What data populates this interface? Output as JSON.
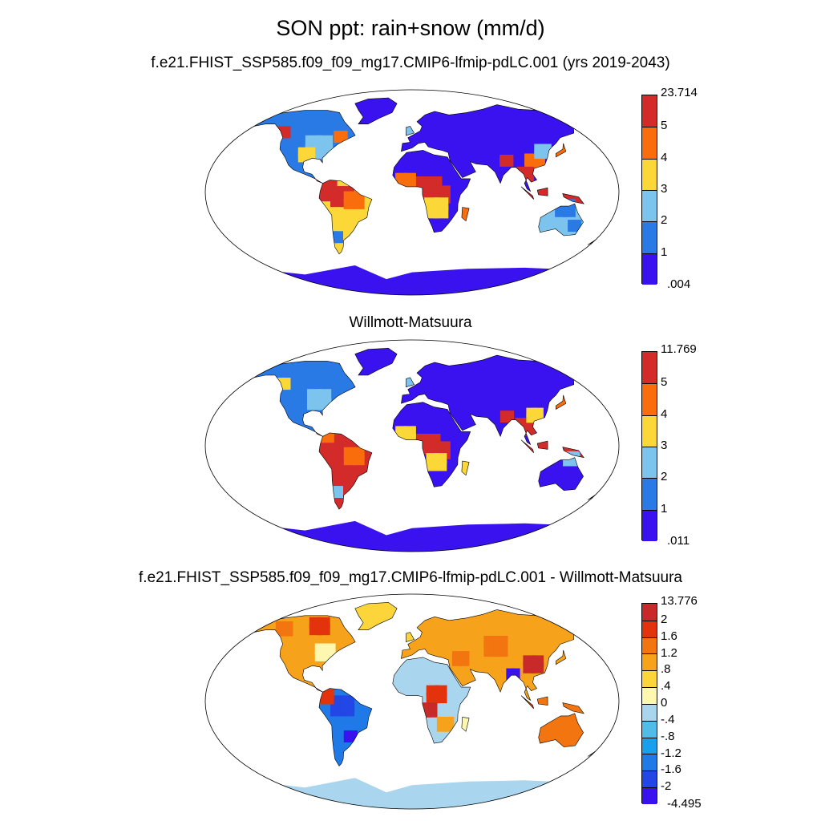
{
  "main_title": "SON ppt: rain+snow (mm/d)",
  "panels": [
    {
      "title": "f.e21.FHIST_SSP585.f09_f09_mg17.CMIP6-lfmip-pdLC.001 (yrs 2019-2043)",
      "colorbar": {
        "labels": [
          ".004",
          "1",
          "2",
          "3",
          "4",
          "5",
          "23.714"
        ],
        "colors": [
          "#3a12f0",
          "#2a7ae6",
          "#7cc4ee",
          "#fbd737",
          "#fa6d0c",
          "#d32a2a"
        ]
      }
    },
    {
      "title": "Willmott-Matsuura",
      "colorbar": {
        "labels": [
          ".011",
          "1",
          "2",
          "3",
          "4",
          "5",
          "11.769"
        ],
        "colors": [
          "#3a12f0",
          "#2a7ae6",
          "#7cc4ee",
          "#fbd737",
          "#fa6d0c",
          "#d32a2a"
        ]
      }
    },
    {
      "title": "f.e21.FHIST_SSP585.f09_f09_mg17.CMIP6-lfmip-pdLC.001 - Willmott-Matsuura",
      "colorbar": {
        "labels": [
          "-4.495",
          "-2",
          "-1.6",
          "-1.2",
          "-.8",
          "-.4",
          "0",
          ".4",
          ".8",
          "1.2",
          "1.6",
          "2",
          "13.776"
        ],
        "colors": [
          "#3a12f0",
          "#2346e6",
          "#1f7ae8",
          "#16a0ee",
          "#52bce8",
          "#a9d6ee",
          "#fdf7b0",
          "#fbd53a",
          "#f7a21b",
          "#f27510",
          "#e3330d",
          "#c82a2a"
        ]
      }
    }
  ],
  "map_style": {
    "ocean": "#ffffff",
    "outline": "#000000",
    "projection": "robinson"
  }
}
